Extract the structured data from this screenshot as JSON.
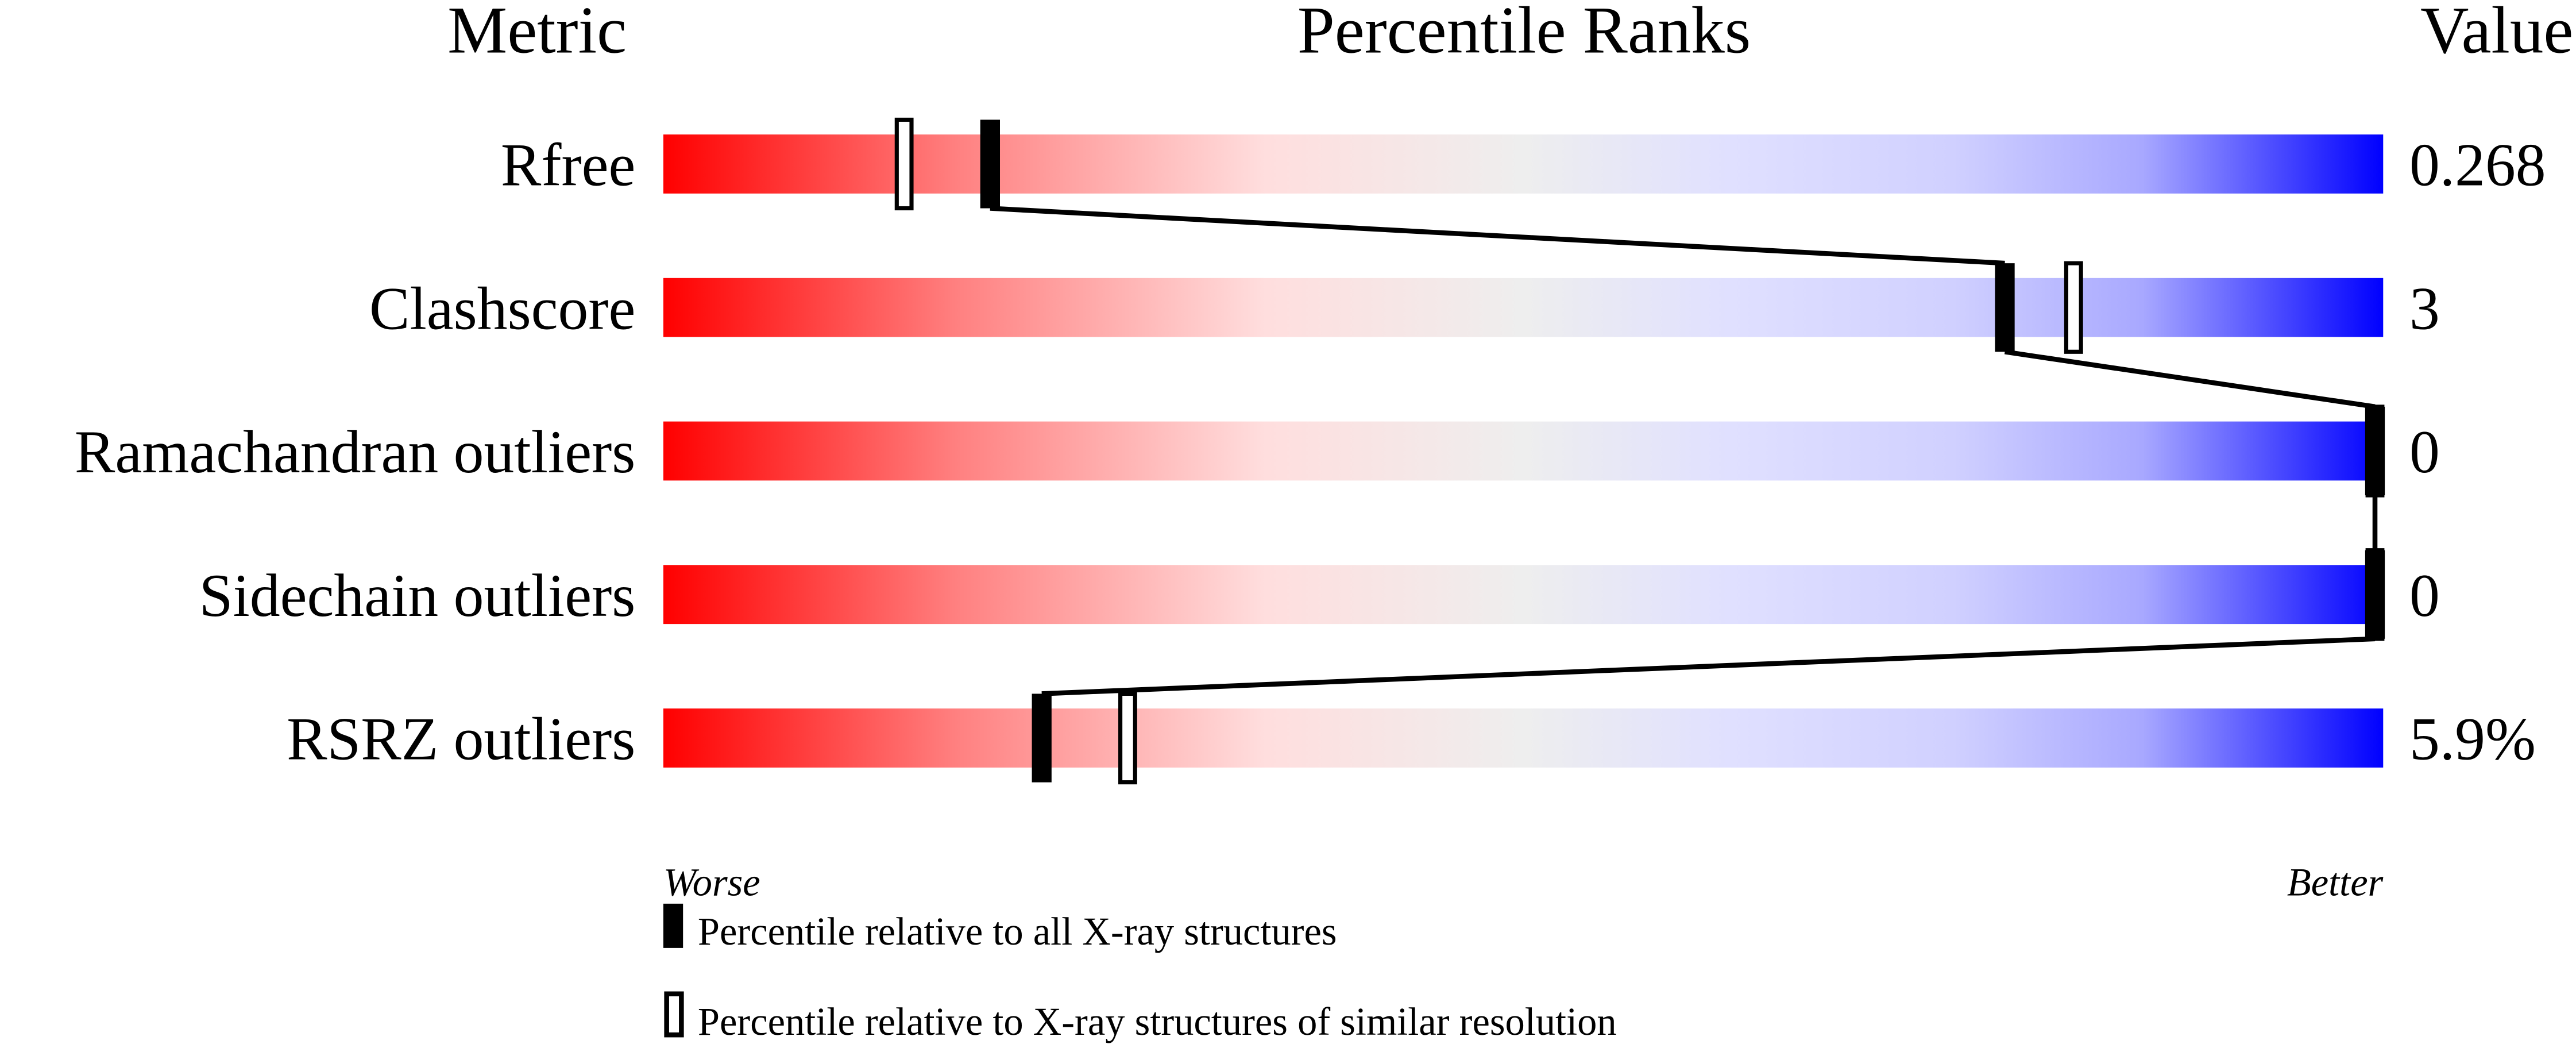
{
  "chart_data": {
    "type": "bar",
    "headers": {
      "metric": "Metric",
      "ranks": "Percentile Ranks",
      "value": "Value"
    },
    "xlim": [
      0,
      100
    ],
    "axis_labels": {
      "left": "Worse",
      "right": "Better"
    },
    "metrics": [
      {
        "name": "Rfree",
        "value": "0.268",
        "percentile_all": 19,
        "percentile_similar": 14
      },
      {
        "name": "Clashscore",
        "value": "3",
        "percentile_all": 78,
        "percentile_similar": 82
      },
      {
        "name": "Ramachandran outliers",
        "value": "0",
        "percentile_all": 100,
        "percentile_similar": 100
      },
      {
        "name": "Sidechain outliers",
        "value": "0",
        "percentile_all": 100,
        "percentile_similar": 100
      },
      {
        "name": "RSRZ outliers",
        "value": "5.9%",
        "percentile_all": 22,
        "percentile_similar": 27
      }
    ],
    "legend": {
      "all": "Percentile relative to all X-ray structures",
      "similar": "Percentile relative to X-ray structures of similar resolution"
    },
    "gradient_colors": [
      "#ff0000",
      "#ff8080",
      "#ffdede",
      "#eeeeee",
      "#e0e0ff",
      "#d0d0ff",
      "#a8a8ff",
      "#0000ff"
    ]
  }
}
